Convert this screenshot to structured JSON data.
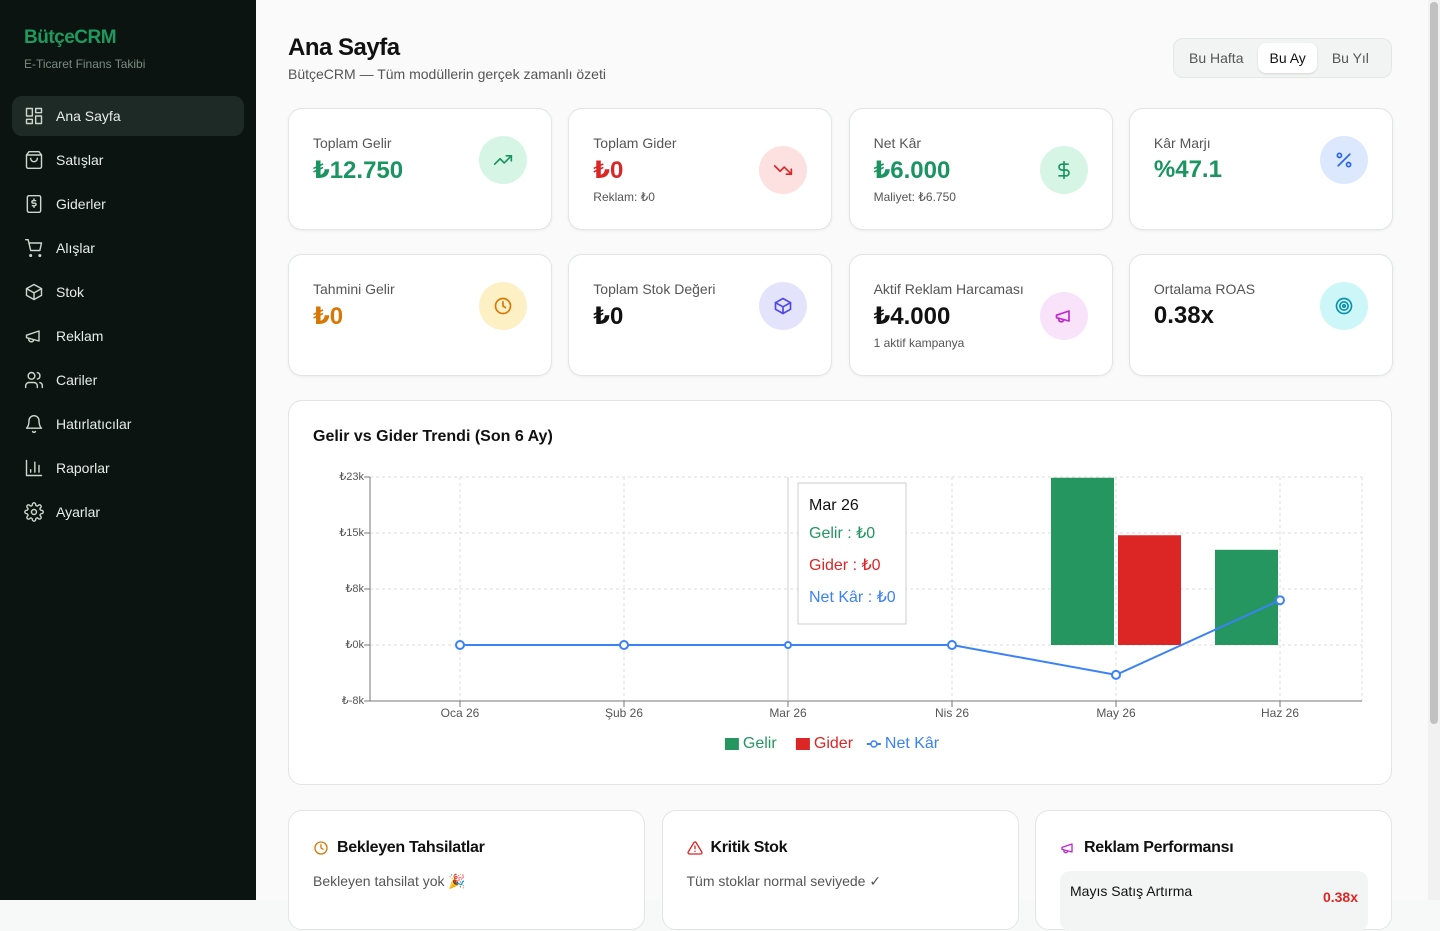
{
  "sidebar": {
    "brand": "BütçeCRM",
    "tagline": "E-Ticaret Finans Takibi",
    "nav": [
      "Ana Sayfa",
      "Satışlar",
      "Giderler",
      "Alışlar",
      "Stok",
      "Reklam",
      "Cariler",
      "Hatırlatıcılar",
      "Raporlar",
      "Ayarlar"
    ]
  },
  "header": {
    "title": "Ana Sayfa",
    "subtitle": "BütçeCRM — Tüm modüllerin gerçek zamanlı özeti",
    "periods": [
      "Bu Hafta",
      "Bu Ay",
      "Bu Yıl"
    ]
  },
  "cards": [
    {
      "label": "Toplam Gelir",
      "value": "₺12.750"
    },
    {
      "label": "Toplam Gider",
      "value": "₺0",
      "note": "Reklam: ₺0"
    },
    {
      "label": "Net Kâr",
      "value": "₺6.000",
      "note": "Maliyet: ₺6.750"
    },
    {
      "label": "Kâr Marjı",
      "value": "%47.1"
    },
    {
      "label": "Tahmini Gelir",
      "value": "₺0"
    },
    {
      "label": "Toplam Stok Değeri",
      "value": "₺0"
    },
    {
      "label": "Aktif Reklam Harcaması",
      "value": "₺4.000",
      "note": "1 aktif kampanya"
    },
    {
      "label": "Ortalama ROAS",
      "value": "0.38x"
    }
  ],
  "chart_data": {
    "type": "bar",
    "title": "Gelir vs Gider Trendi (Son 6 Ay)",
    "categories": [
      "Oca 26",
      "Şub 26",
      "Mar 26",
      "Nis 26",
      "May 26",
      "Haz 26"
    ],
    "series": [
      {
        "name": "Gelir",
        "color": "#259660",
        "type": "bar",
        "values": [
          0,
          0,
          0,
          0,
          22400,
          12750
        ]
      },
      {
        "name": "Gider",
        "color": "#dc2626",
        "type": "bar",
        "values": [
          0,
          0,
          0,
          0,
          14700,
          0
        ]
      },
      {
        "name": "Net Kâr",
        "color": "#3b82f6",
        "type": "line",
        "values": [
          0,
          0,
          0,
          0,
          -4000,
          6000
        ]
      }
    ],
    "ylim": [
      -7500,
      22500
    ],
    "yticks": [
      {
        "value": -7500,
        "label": "₺-8k"
      },
      {
        "value": 0,
        "label": "₺0k"
      },
      {
        "value": 7500,
        "label": "₺8k"
      },
      {
        "value": 15000,
        "label": "₺15k"
      },
      {
        "value": 22500,
        "label": "₺23k"
      }
    ],
    "grid": true,
    "tooltip": {
      "category": "Mar 26",
      "lines": [
        "Gelir : ₺0",
        "Gider : ₺0",
        "Net Kâr : ₺0"
      ]
    }
  },
  "panels": [
    {
      "title": "Bekleyen Tahsilatlar",
      "text": "Bekleyen tahsilat yok 🎉"
    },
    {
      "title": "Kritik Stok",
      "text": "Tüm stoklar normal seviyede ✓"
    },
    {
      "title": "Reklam Performansı",
      "items": [
        {
          "name": "Mayıs Satış Artırma",
          "roas": "0.38x"
        }
      ]
    }
  ]
}
